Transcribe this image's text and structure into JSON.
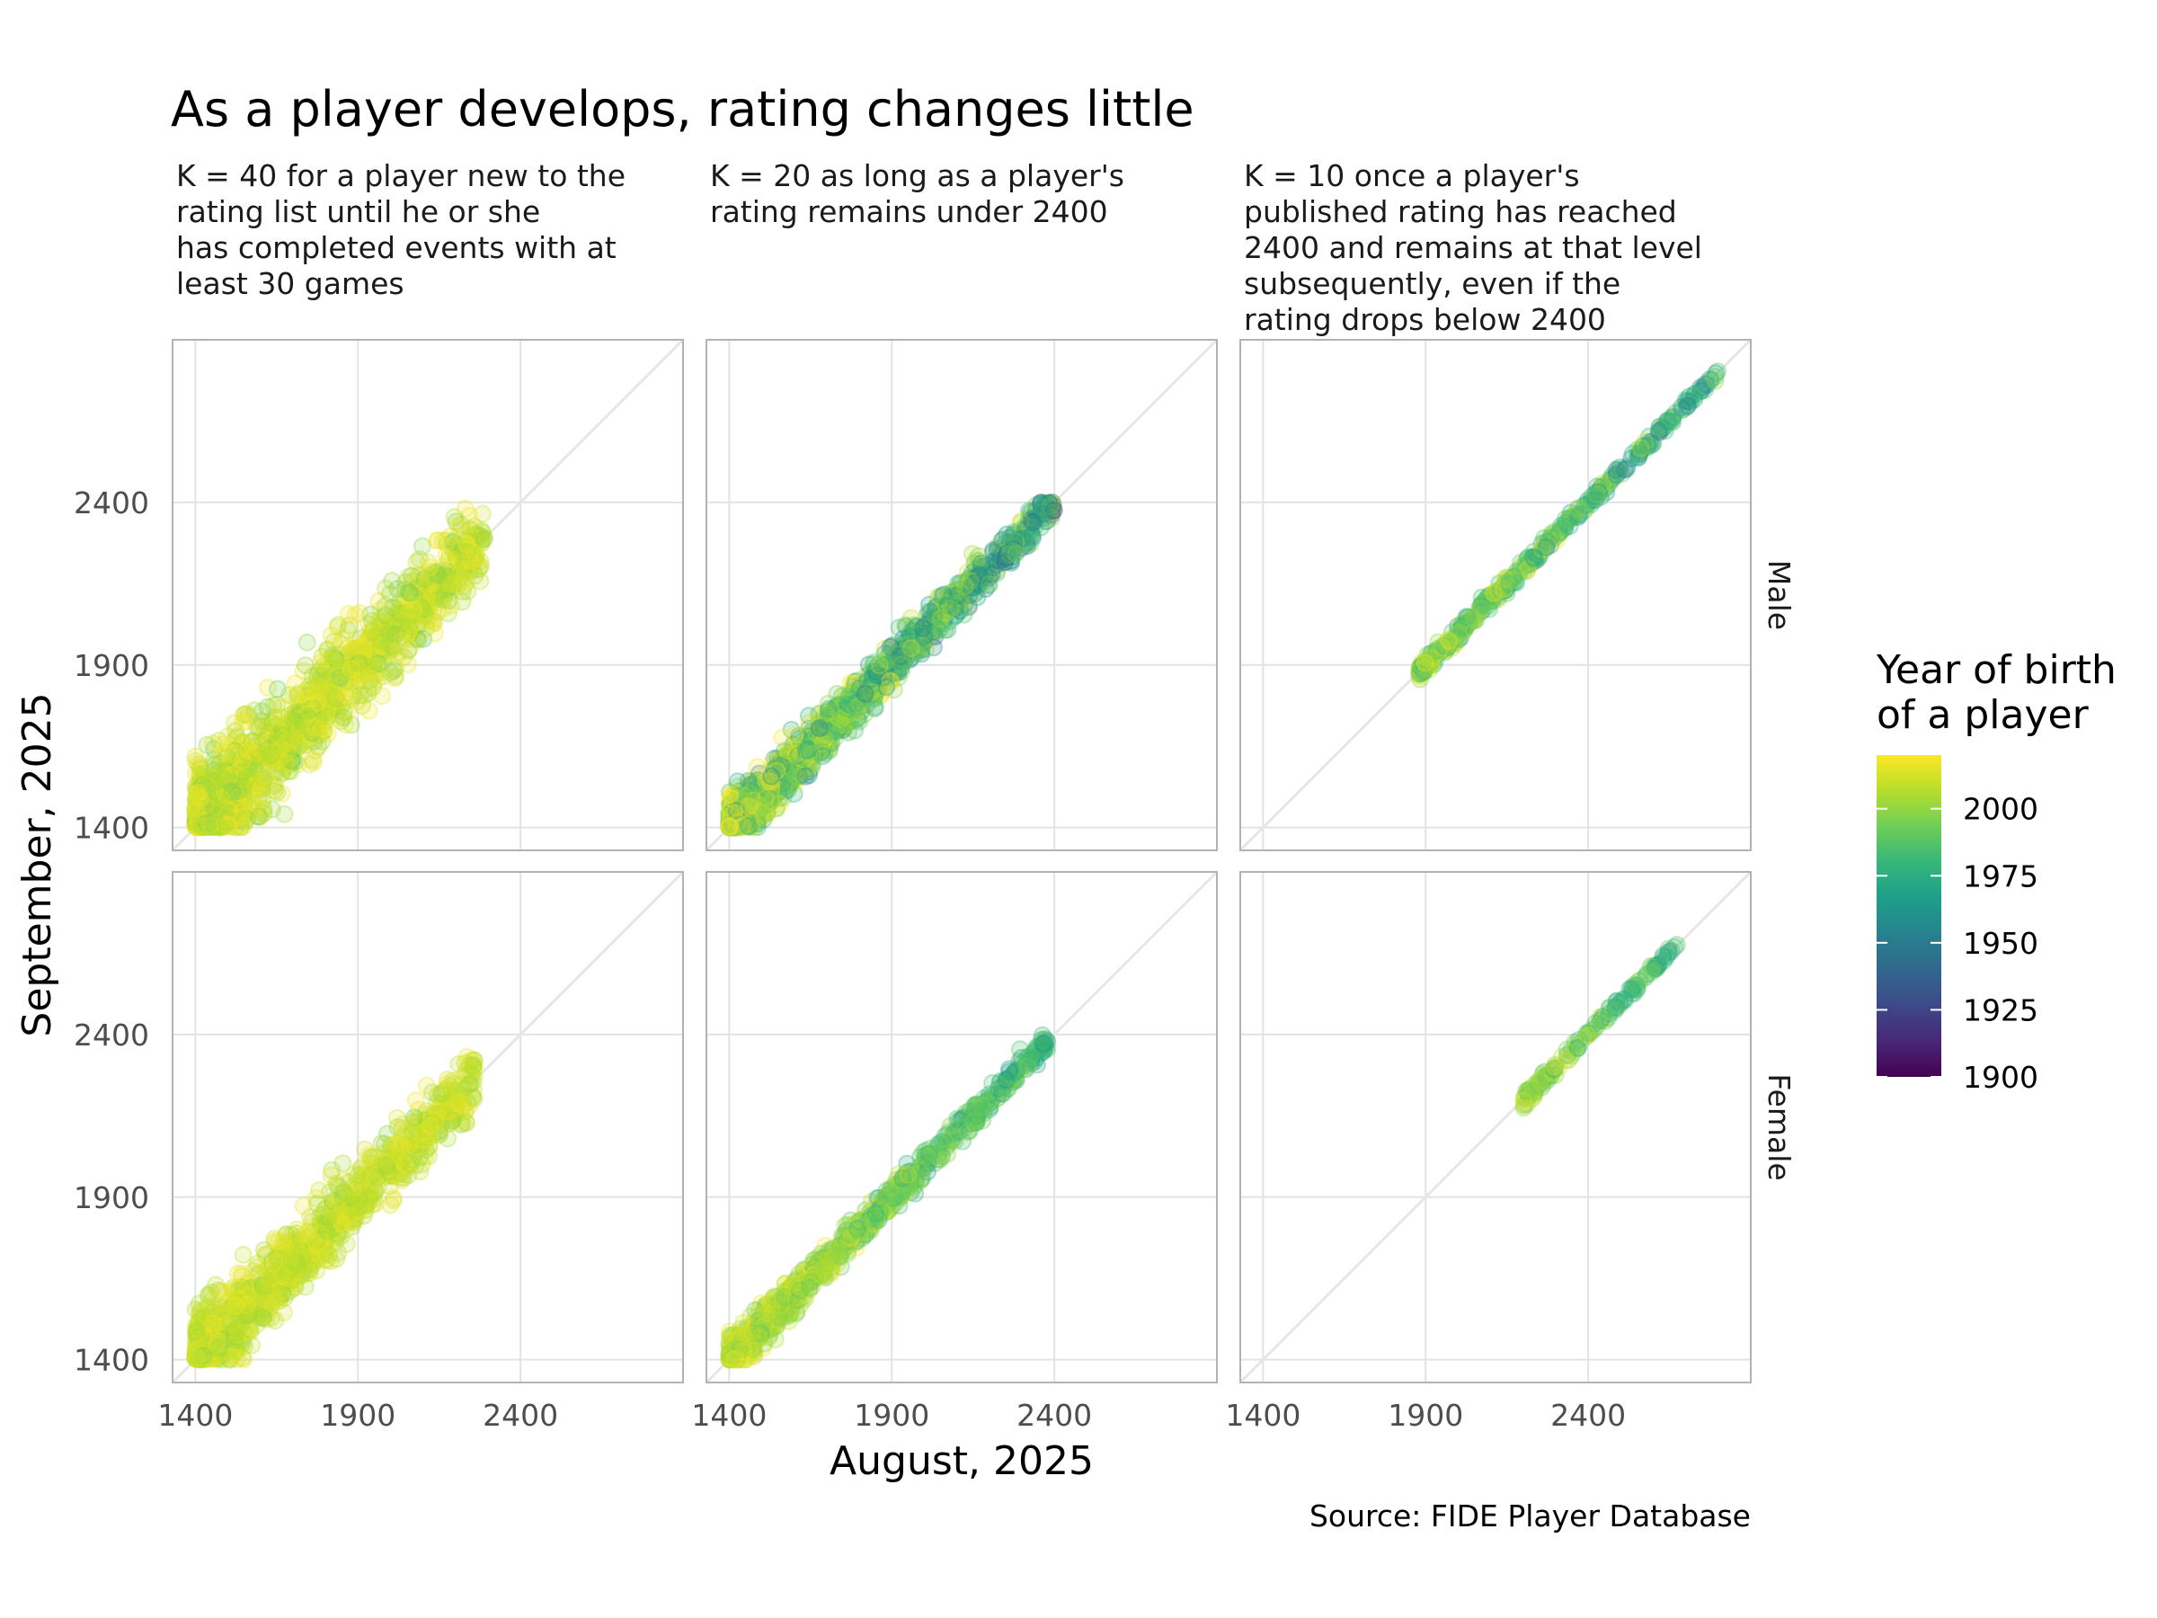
{
  "chart_data": {
    "type": "scatter",
    "title": "As a player develops, rating changes little",
    "xlabel": "August, 2025",
    "ylabel": "September, 2025",
    "caption": "Source: FIDE Player Database",
    "xlim": [
      1330,
      2900
    ],
    "ylim": [
      1330,
      2900
    ],
    "x_ticks": [
      "1400",
      "1900",
      "2400"
    ],
    "y_ticks": [
      "1400",
      "1900",
      "2400"
    ],
    "tick_values": [
      1400,
      1900,
      2400
    ],
    "grid": true,
    "reference_line": "y = x",
    "facet_columns": [
      "K = 40 for a player new to the\nrating list until he or she\nhas completed events with at\nleast 30 games",
      "K = 20 as long as a player's\nrating remains under 2400",
      "K = 10 once a player's\npublished rating has reached\n2400 and remains at that level\nsubsequently, even if the\nrating drops below 2400"
    ],
    "facet_rows": [
      "Male",
      "Female"
    ],
    "color_scale": {
      "title": "Year of birth\nof a player",
      "palette": "viridis",
      "range": [
        1900,
        2020
      ],
      "breaks": [
        "1900",
        "1925",
        "1950",
        "1975",
        "2000"
      ],
      "break_values": [
        1900,
        1925,
        1950,
        1975,
        2000
      ]
    },
    "panels": [
      {
        "col": 0,
        "row": 0,
        "x_range": [
          1400,
          2290
        ],
        "spread": 90,
        "birth_mean": 2010,
        "birth_spread": 8,
        "n": 1300
      },
      {
        "col": 1,
        "row": 0,
        "x_range": [
          1400,
          2400
        ],
        "spread": 45,
        "birth_mean": 1985,
        "birth_spread": 20,
        "n": 1100
      },
      {
        "col": 2,
        "row": 0,
        "x_range": [
          1880,
          2800
        ],
        "spread": 14,
        "birth_mean": 1985,
        "birth_spread": 15,
        "n": 380
      },
      {
        "col": 0,
        "row": 1,
        "x_range": [
          1400,
          2260
        ],
        "spread": 70,
        "birth_mean": 2010,
        "birth_spread": 6,
        "n": 1000
      },
      {
        "col": 1,
        "row": 1,
        "x_range": [
          1400,
          2380
        ],
        "spread": 30,
        "birth_mean": 1995,
        "birth_spread": 10,
        "n": 800
      },
      {
        "col": 2,
        "row": 1,
        "x_range": [
          2200,
          2680
        ],
        "spread": 12,
        "birth_mean": 1990,
        "birth_spread": 9,
        "n": 140
      }
    ]
  },
  "colors": {
    "viridis": [
      "#440154",
      "#482878",
      "#3e4989",
      "#31688e",
      "#26828e",
      "#1f9e89",
      "#35b779",
      "#6ece58",
      "#b5de2b",
      "#fde725"
    ],
    "background": "#ffffff",
    "grid": "#e3e3e3",
    "frame": "#b3b3b3",
    "reference_line": "#e6e6e6"
  }
}
